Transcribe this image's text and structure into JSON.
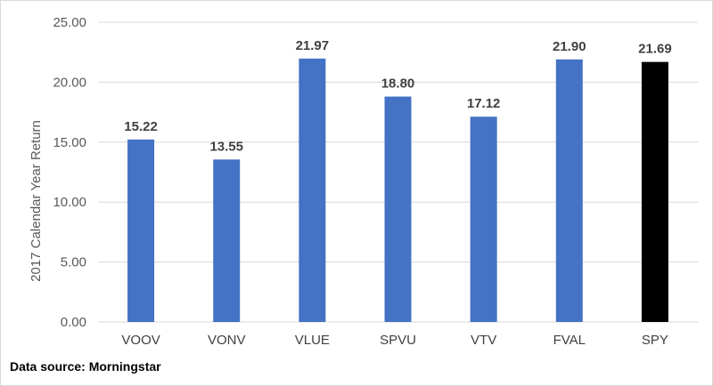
{
  "chart_data": {
    "type": "bar",
    "categories": [
      "VOOV",
      "VONV",
      "VLUE",
      "SPVU",
      "VTV",
      "FVAL",
      "SPY"
    ],
    "values": [
      15.22,
      13.55,
      21.97,
      18.8,
      17.12,
      21.9,
      21.69
    ],
    "value_labels": [
      "15.22",
      "13.55",
      "21.97",
      "18.80",
      "17.12",
      "21.90",
      "21.69"
    ],
    "ylabel": "2017 Calendar Year Return",
    "xlabel": "",
    "ylim": [
      0,
      25
    ],
    "yticks": [
      "0.00",
      "5.00",
      "10.00",
      "15.00",
      "20.00",
      "25.00"
    ],
    "grid": true,
    "bar_colors": [
      "#4472c4",
      "#4472c4",
      "#4472c4",
      "#4472c4",
      "#4472c4",
      "#4472c4",
      "#000000"
    ]
  },
  "source_note": "Data source: Morningstar"
}
